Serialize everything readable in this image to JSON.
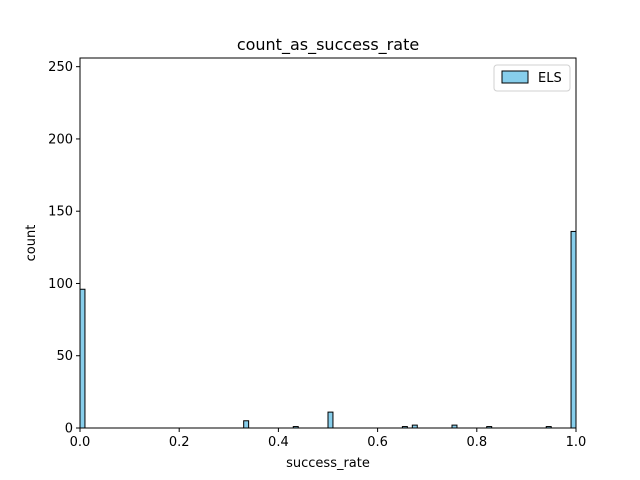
{
  "chart_data": {
    "type": "bar",
    "title": "count_as_success_rate",
    "xlabel": "success_rate",
    "ylabel": "count",
    "xlim": [
      0,
      1
    ],
    "ylim": [
      0,
      256
    ],
    "xticks": [
      "0.0",
      "0.2",
      "0.4",
      "0.6",
      "0.8",
      "1.0"
    ],
    "yticks": [
      "0",
      "50",
      "100",
      "150",
      "200",
      "250"
    ],
    "bin_width": 0.01,
    "grid": false,
    "legend_position": "top-right",
    "series": [
      {
        "name": "ELS",
        "color": "#87ceeb",
        "edge_color": "#000000",
        "bins": [
          {
            "x": 0.0,
            "count": 96
          },
          {
            "x": 0.33,
            "count": 5
          },
          {
            "x": 0.43,
            "count": 1
          },
          {
            "x": 0.5,
            "count": 11
          },
          {
            "x": 0.65,
            "count": 1
          },
          {
            "x": 0.67,
            "count": 2
          },
          {
            "x": 0.75,
            "count": 2
          },
          {
            "x": 0.82,
            "count": 1
          },
          {
            "x": 0.94,
            "count": 1
          },
          {
            "x": 0.99,
            "count": 136
          }
        ]
      }
    ]
  }
}
